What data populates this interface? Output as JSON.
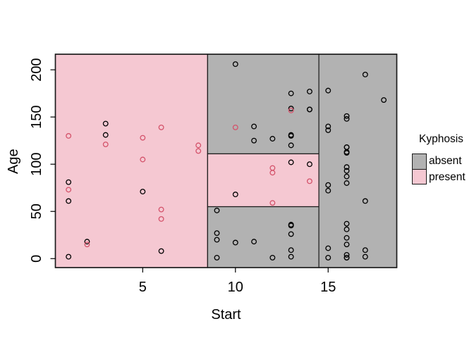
{
  "colors": {
    "absent_fill": "#b2b2b2",
    "present_fill": "#f5c8d2",
    "absent_point": "#000000",
    "present_point": "#d4536b",
    "border": "#1a1a1a"
  },
  "chart_data": {
    "type": "scatter",
    "title": "",
    "xlabel": "Start",
    "ylabel": "Age",
    "xlim": [
      0.29,
      18.7
    ],
    "ylim": [
      -9.5,
      216.5
    ],
    "xticks": [
      5,
      10,
      15
    ],
    "yticks": [
      0,
      50,
      100,
      150,
      200
    ],
    "grid": false,
    "legend": {
      "title": "Kyphosis",
      "position": "right",
      "entries": [
        {
          "label": "absent",
          "class": "absent"
        },
        {
          "label": "present",
          "class": "present"
        }
      ]
    },
    "regions": [
      {
        "x": [
          0.29,
          8.5
        ],
        "y": [
          -9.5,
          216.5
        ],
        "class": "present"
      },
      {
        "x": [
          8.5,
          14.5
        ],
        "y": [
          111,
          216.5
        ],
        "class": "absent"
      },
      {
        "x": [
          8.5,
          14.5
        ],
        "y": [
          55,
          111
        ],
        "class": "present"
      },
      {
        "x": [
          8.5,
          14.5
        ],
        "y": [
          -9.5,
          55
        ],
        "class": "absent"
      },
      {
        "x": [
          14.5,
          18.7
        ],
        "y": [
          -9.5,
          216.5
        ],
        "class": "absent"
      }
    ],
    "points": [
      [
        5,
        71,
        "absent"
      ],
      [
        14,
        158,
        "absent"
      ],
      [
        5,
        128,
        "present"
      ],
      [
        1,
        2,
        "absent"
      ],
      [
        15,
        1,
        "absent"
      ],
      [
        16,
        1,
        "absent"
      ],
      [
        17,
        61,
        "absent"
      ],
      [
        16,
        37,
        "absent"
      ],
      [
        16,
        113,
        "absent"
      ],
      [
        12,
        59,
        "present"
      ],
      [
        14,
        82,
        "present"
      ],
      [
        16,
        148,
        "absent"
      ],
      [
        2,
        18,
        "absent"
      ],
      [
        12,
        1,
        "absent"
      ],
      [
        18,
        168,
        "absent"
      ],
      [
        16,
        1,
        "absent"
      ],
      [
        15,
        78,
        "absent"
      ],
      [
        13,
        175,
        "absent"
      ],
      [
        16,
        80,
        "absent"
      ],
      [
        9,
        27,
        "absent"
      ],
      [
        16,
        22,
        "absent"
      ],
      [
        5,
        105,
        "present"
      ],
      [
        12,
        96,
        "present"
      ],
      [
        3,
        131,
        "absent"
      ],
      [
        2,
        15,
        "present"
      ],
      [
        13,
        9,
        "absent"
      ],
      [
        6,
        8,
        "absent"
      ],
      [
        14,
        100,
        "absent"
      ],
      [
        16,
        4,
        "absent"
      ],
      [
        16,
        151,
        "absent"
      ],
      [
        16,
        31,
        "absent"
      ],
      [
        11,
        125,
        "absent"
      ],
      [
        13,
        130,
        "absent"
      ],
      [
        16,
        112,
        "absent"
      ],
      [
        11,
        140,
        "absent"
      ],
      [
        16,
        93,
        "absent"
      ],
      [
        9,
        1,
        "absent"
      ],
      [
        6,
        52,
        "present"
      ],
      [
        9,
        20,
        "absent"
      ],
      [
        12,
        91,
        "present"
      ],
      [
        1,
        73,
        "present"
      ],
      [
        13,
        35,
        "absent"
      ],
      [
        3,
        143,
        "absent"
      ],
      [
        1,
        61,
        "absent"
      ],
      [
        16,
        97,
        "absent"
      ],
      [
        10,
        139,
        "present"
      ],
      [
        15,
        136,
        "absent"
      ],
      [
        13,
        131,
        "absent"
      ],
      [
        3,
        121,
        "present"
      ],
      [
        14,
        177,
        "absent"
      ],
      [
        10,
        68,
        "absent"
      ],
      [
        17,
        9,
        "absent"
      ],
      [
        6,
        139,
        "present"
      ],
      [
        17,
        2,
        "absent"
      ],
      [
        15,
        140,
        "absent"
      ],
      [
        15,
        72,
        "absent"
      ],
      [
        13,
        2,
        "absent"
      ],
      [
        8,
        120,
        "present"
      ],
      [
        9,
        51,
        "absent"
      ],
      [
        13,
        102,
        "absent"
      ],
      [
        1,
        130,
        "present"
      ],
      [
        8,
        114,
        "present"
      ],
      [
        1,
        81,
        "absent"
      ],
      [
        16,
        118,
        "absent"
      ],
      [
        16,
        118,
        "absent"
      ],
      [
        10,
        17,
        "absent"
      ],
      [
        17,
        195,
        "absent"
      ],
      [
        13,
        159,
        "absent"
      ],
      [
        11,
        18,
        "absent"
      ],
      [
        16,
        15,
        "absent"
      ],
      [
        14,
        158,
        "absent"
      ],
      [
        12,
        127,
        "absent"
      ],
      [
        16,
        87,
        "absent"
      ],
      [
        10,
        206,
        "absent"
      ],
      [
        15,
        11,
        "absent"
      ],
      [
        15,
        178,
        "absent"
      ],
      [
        13,
        157,
        "present"
      ],
      [
        13,
        26,
        "absent"
      ],
      [
        13,
        120,
        "absent"
      ],
      [
        6,
        42,
        "present"
      ],
      [
        13,
        36,
        "absent"
      ]
    ]
  }
}
